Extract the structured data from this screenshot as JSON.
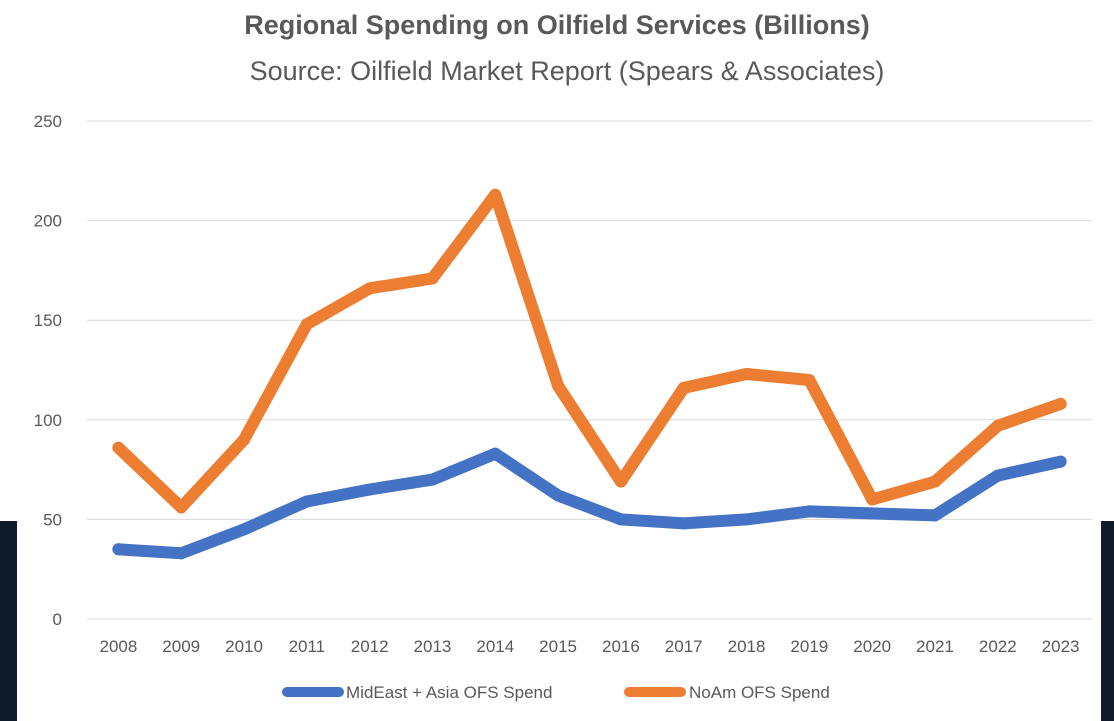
{
  "chart_data": {
    "type": "line",
    "title": "Regional Spending on Oilfield Services (Billions)",
    "subtitle": "Source:  Oilfield Market Report (Spears & Associates)",
    "xlabel": "",
    "ylabel": "",
    "categories": [
      "2008",
      "2009",
      "2010",
      "2011",
      "2012",
      "2013",
      "2014",
      "2015",
      "2016",
      "2017",
      "2018",
      "2019",
      "2020",
      "2021",
      "2022",
      "2023"
    ],
    "ylim": [
      0,
      250
    ],
    "yticks": [
      0,
      50,
      100,
      150,
      200,
      250
    ],
    "grid": true,
    "legend_position": "bottom",
    "series": [
      {
        "name": "MidEast + Asia OFS Spend",
        "color": "#4472c4",
        "values": [
          35,
          33,
          45,
          59,
          65,
          70,
          83,
          62,
          50,
          48,
          50,
          54,
          53,
          52,
          72,
          79
        ]
      },
      {
        "name": "NoAm OFS Spend",
        "color": "#ed7d31",
        "values": [
          86,
          56,
          90,
          148,
          166,
          171,
          213,
          117,
          69,
          116,
          123,
          120,
          60,
          69,
          97,
          108
        ]
      }
    ],
    "colors": {
      "plot_background": "#ffffff",
      "page_background": "#0f1a2b",
      "gridline": "#d9d9d9",
      "text": "#595959"
    }
  }
}
